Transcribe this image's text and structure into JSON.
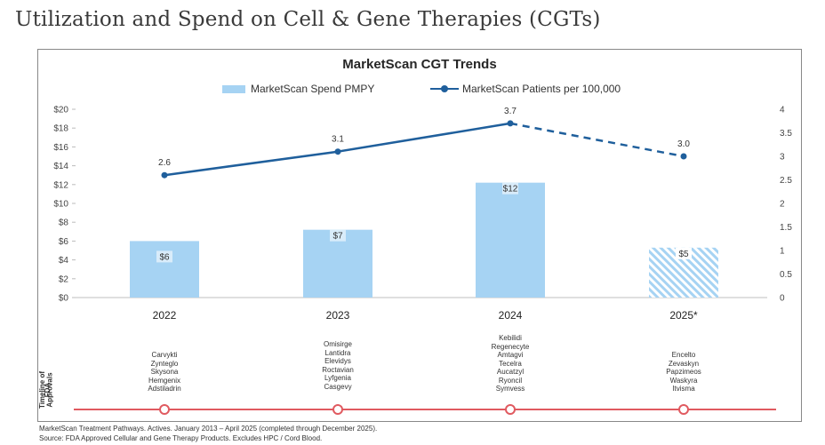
{
  "page": {
    "title": "Utilization and Spend on Cell & Gene Therapies (CGTs)"
  },
  "chart_data": {
    "type": "bar",
    "title": "MarketScan CGT Trends",
    "categories": [
      "2022",
      "2023",
      "2024",
      "2025*"
    ],
    "series": [
      {
        "name": "MarketScan Spend PMPY",
        "type": "bar",
        "axis": "left",
        "values": [
          6,
          7.2,
          12.2,
          5.3
        ],
        "labels": [
          "$6",
          "$7",
          "$12",
          "$5"
        ],
        "projected": [
          false,
          false,
          false,
          true
        ],
        "color": "#a6d3f3"
      },
      {
        "name": "MarketScan Patients per 100,000",
        "type": "line",
        "axis": "right",
        "values": [
          2.6,
          3.1,
          3.7,
          3.0
        ],
        "labels": [
          "2.6",
          "3.1",
          "3.7",
          "3.0"
        ],
        "projected": [
          false,
          false,
          false,
          true
        ],
        "color": "#1f5f9c"
      }
    ],
    "y_left": {
      "range": [
        0,
        20
      ],
      "ticks": [
        "$0",
        "$2",
        "$4",
        "$6",
        "$8",
        "$10",
        "$12",
        "$14",
        "$16",
        "$18",
        "$20"
      ]
    },
    "y_right": {
      "range": [
        0,
        4
      ],
      "ticks": [
        "0",
        "0.5",
        "1",
        "1.5",
        "2",
        "2.5",
        "3",
        "3.5",
        "4"
      ]
    },
    "legend_position": "top",
    "grid": false
  },
  "timeline": {
    "label_lines": [
      "Timeline of",
      "FDA",
      "Approvals"
    ],
    "marker_color": "#e05a60",
    "approvals": [
      {
        "year": "2022",
        "therapies": [
          "Carvykti",
          "Zynteglo",
          "Skysona",
          "Hemgenix",
          "Adstiladrin"
        ]
      },
      {
        "year": "2023",
        "therapies": [
          "Omisirge",
          "Lantidra",
          "Elevidys",
          "Roctavian",
          "Lyfgenia",
          "Casgevy"
        ]
      },
      {
        "year": "2024",
        "therapies": [
          "Kebilidi",
          "Regenecyte",
          "Amtagvi",
          "Tecelra",
          "Aucatzyl",
          "Ryoncil",
          "Symvess"
        ]
      },
      {
        "year": "2025",
        "therapies": [
          "Encelto",
          "Zevaskyn",
          "Papzimeos",
          "Waskyra",
          "Itvisma"
        ]
      }
    ]
  },
  "footnotes": [
    "MarketScan Treatment Pathways. Actives. January 2013 – April 2025 (completed through December 2025).",
    "Source: FDA Approved Cellular and Gene Therapy Products. Excludes HPC / Cord Blood."
  ]
}
